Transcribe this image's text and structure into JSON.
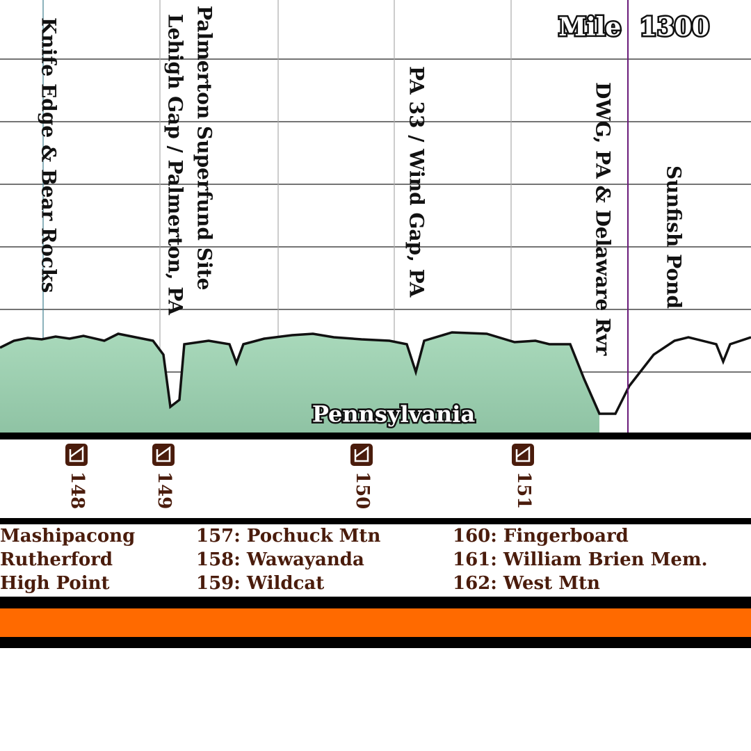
{
  "mile": {
    "label": "Mile",
    "number": "1300"
  },
  "landmarks": [
    "Knife Edge & Bear Rocks",
    "Lehigh Gap / Palmerton, PA",
    "Palmerton Superfund Site",
    "PA 33 / Wind Gap, PA",
    "DWG, PA & Delaware Rvr",
    "Sunfish Pond"
  ],
  "state": "Pennsylvania",
  "shelters": [
    "148",
    "149",
    "150",
    "151"
  ],
  "shelter_list": [
    [
      "Mashipacong",
      "Rutherford",
      "High Point"
    ],
    [
      "157: Pochuck Mtn",
      "158: Wawayanda",
      "159: Wildcat"
    ],
    [
      "160: Fingerboard",
      "161: William Brien Mem.",
      "162: West Mtn"
    ]
  ]
}
